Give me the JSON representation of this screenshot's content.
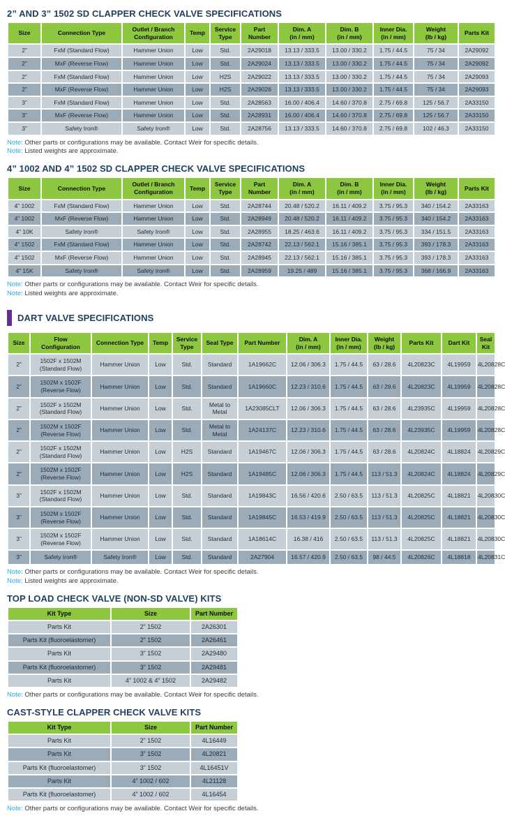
{
  "colors": {
    "header_green": "#8dc63f",
    "row_light": "#c6cfd6",
    "row_dark": "#9cabb8",
    "title_navy": "#223f60",
    "note_cyan": "#29abe2",
    "accent_purple": "#662d91"
  },
  "note_label": "Note:",
  "note_contact": "Other parts or configurations may be available. Contact Weir for specific details.",
  "note_weights": "Listed weights are approximate.",
  "titles": {
    "table1": "2” AND 3” 1502 SD CLAPPER CHECK VALVE SPECIFICATIONS",
    "table2": "4” 1002 AND 4” 1502 SD CLAPPER CHECK VALVE SPECIFICATIONS",
    "table3": "DART VALVE SPECIFICATIONS",
    "table4": "TOP LOAD CHECK VALVE (NON-SD VALVE) KITS",
    "table5": "CAST-STYLE CLAPPER CHECK VALVE KITS"
  },
  "table1": {
    "headers": [
      "Size",
      "Connection Type",
      "Outlet / Branch\nConfiguration",
      "Temp",
      "Service\nType",
      "Part\nNumber",
      "Dim. A\n(in / mm)",
      "Dim. B\n(in / mm)",
      "Inner Dia.\n(in / mm)",
      "Weight\n(lb / kg)",
      "Parts Kit"
    ],
    "rows": [
      [
        "2”",
        "FxM (Standard Flow)",
        "Hammer Union",
        "Low",
        "Std.",
        "2A29018",
        "13.13 / 333.5",
        "13.00 / 330.2",
        "1.75 / 44.5",
        "75 / 34",
        "2A29092"
      ],
      [
        "2”",
        "MxF (Reverse Flow)",
        "Hammer Union",
        "Low",
        "Std.",
        "2A29024",
        "13.13 / 333.5",
        "13.00 / 330.2",
        "1.75 / 44.5",
        "75 / 34",
        "2A29092"
      ],
      [
        "2”",
        "FxM (Standard Flow)",
        "Hammer Union",
        "Low",
        "H2S",
        "2A29022",
        "13.13 / 333.5",
        "13.00 / 330.2",
        "1.75 / 44.5",
        "75 / 34",
        "2A29093"
      ],
      [
        "2”",
        "MxF (Reverse Flow)",
        "Hammer Union",
        "Low",
        "H2S",
        "2A29026",
        "13.13 / 333.5",
        "13.00 / 330.2",
        "1.75 / 44.5",
        "75 / 34",
        "2A29093"
      ],
      [
        "3”",
        "FxM (Standard Flow)",
        "Hammer Union",
        "Low",
        "Std.",
        "2A28563",
        "16.00 / 406.4",
        "14.60 / 370.8",
        "2.75 / 69.8",
        "125 / 56.7",
        "2A33150"
      ],
      [
        "3”",
        "MxF (Reverse Flow)",
        "Hammer Union",
        "Low",
        "Std.",
        "2A28931",
        "16.00 / 406.4",
        "14.60 / 370.8",
        "2.75 / 69.8",
        "125 / 56.7",
        "2A33150"
      ],
      [
        "3”",
        "Safety Iron®",
        "Safety Iron®",
        "Low",
        "Std.",
        "2A28756",
        "13.13 / 333.5",
        "14.60 / 370.8",
        "2.75 / 69.8",
        "102 / 46.3",
        "2A33150"
      ]
    ]
  },
  "table2": {
    "headers": [
      "Size",
      "Connection Type",
      "Outlet / Branch\nConfiguration",
      "Temp",
      "Service\nType",
      "Part\nNumber",
      "Dim. A\n(in / mm)",
      "Dim. B\n(in / mm)",
      "Inner Dia.\n(in / mm)",
      "Weight\n(lb / kg)",
      "Parts Kit"
    ],
    "rows": [
      [
        "4” 1002",
        "FxM (Standard Flow)",
        "Hammer Union",
        "Low",
        "Std.",
        "2A28744",
        "20.48 / 520.2",
        "16.11 / 409.2",
        "3.75 / 95.3",
        "340 / 154.2",
        "2A33163"
      ],
      [
        "4” 1002",
        "MxF (Reverse Flow)",
        "Hammer Union",
        "Low",
        "Std.",
        "2A28949",
        "20.48 / 520.2",
        "16.11 / 409.2",
        "3.75 / 95.3",
        "340 / 154.2",
        "2A33163"
      ],
      [
        "4” 10K",
        "Safety Iron®",
        "Safety Iron®",
        "Low",
        "Std.",
        "2A28955",
        "18.25 / 463.6",
        "16.11 / 409.2",
        "3.75 / 95.3",
        "334 / 151.5",
        "2A33163"
      ],
      [
        "4” 1502",
        "FxM (Standard Flow)",
        "Hammer Union",
        "Low",
        "Std.",
        "2A28742",
        "22.13 / 562.1",
        "15.16 / 385.1",
        "3.75 / 95.3",
        "393 / 178.3",
        "2A33163"
      ],
      [
        "4” 1502",
        "MxF (Reverse Flow)",
        "Hammer Union",
        "Low",
        "Std.",
        "2A28945",
        "22.13 / 562.1",
        "15.16 / 385.1",
        "3.75 / 95.3",
        "393 / 178.3",
        "2A33163"
      ],
      [
        "4” 15K",
        "Safety Iron®",
        "Safety Iron®",
        "Low",
        "Std.",
        "2A28959",
        "19.25 / 489",
        "15.16 / 385.1",
        "3.75 / 95.3",
        "368 / 166.9",
        "2A33163"
      ]
    ]
  },
  "table3": {
    "headers": [
      "Size",
      "Flow\nConfiguration",
      "Connection Type",
      "Temp",
      "Service\nType",
      "Seal Type",
      "Part Number",
      "Dim. A\n(in / mm)",
      "Inner Dia.\n(in / mm)",
      "Weight\n(lb / kg)",
      "Parts Kit",
      "Dart Kit",
      "Seal Kit"
    ],
    "rows": [
      [
        "2”",
        "1502F x 1502M\n(Standard Flow)",
        "Hammer Union",
        "Low",
        "Std.",
        "Standard",
        "1A19662C",
        "12.06 / 306.3",
        "1.75 / 44.5",
        "63 / 28.6",
        "4L20823C",
        "4L19959",
        "4L20828C"
      ],
      [
        "2”",
        "1502M x 1502F\n(Reverse Flow)",
        "Hammer Union",
        "Low",
        "Std.",
        "Standard",
        "1A19660C",
        "12.23 / 310.6",
        "1.75 / 44.5",
        "63 / 28.6",
        "4L20823C",
        "4L19959",
        "4L20828C"
      ],
      [
        "2”",
        "1502F x 1502M\n(Standard Flow)",
        "Hammer Union",
        "Low",
        "Std.",
        "Metal to\nMetal",
        "1A23085CLT",
        "12.06 / 306.3",
        "1.75 / 44.5",
        "63 / 28.6",
        "4L23935C",
        "4L19959",
        "4L20828C"
      ],
      [
        "2”",
        "1502M x 1502F\n(Reverse Flow)",
        "Hammer Union",
        "Low",
        "Std.",
        "Metal to\nMetal",
        "1A24137C",
        "12.23 / 310.6",
        "1.75 / 44.5",
        "63 / 28.6",
        "4L23935C",
        "4L19959",
        "4L20828C"
      ],
      [
        "2”",
        "1502F x 1502M\n(Standard Flow)",
        "Hammer Union",
        "Low",
        "H2S",
        "Standard",
        "1A19467C",
        "12.06 / 306.3",
        "1.75 / 44.5",
        "63 / 28.6",
        "4L20824C",
        "4L18824",
        "4L20829C"
      ],
      [
        "2”",
        "1502M x 1502F\n(Reverse Flow)",
        "Hammer Union",
        "Low",
        "H2S",
        "Standard",
        "1A19485C",
        "12.06 / 306.3",
        "1.75 / 44.5",
        "113 / 51.3",
        "4L20824C",
        "4L18824",
        "4L20829C"
      ],
      [
        "3”",
        "1502F x 1502M\n(Standard Flow)",
        "Hammer Union",
        "Low",
        "Std.",
        "Standard",
        "1A19843C",
        "16.56 / 420.6",
        "2.50 / 63.5",
        "113 / 51.3",
        "4L20825C",
        "4L18821",
        "4L20830C"
      ],
      [
        "3”",
        "1502M x 1502F\n(Reverse Flow)",
        "Hammer Union",
        "Low",
        "Std.",
        "Standard",
        "1A19845C",
        "16.53 / 419.9",
        "2.50 / 63.5",
        "113 / 51.3",
        "4L20825C",
        "4L18821",
        "4L20830C"
      ],
      [
        "3”",
        "1502M x 1502F\n(Reverse Flow)",
        "Hammer Union",
        "Low",
        "Std.",
        "Standard",
        "1A18614C",
        "16.38 / 416",
        "2.50 / 63.5",
        "113 / 51.3",
        "4L20825C",
        "4L18821",
        "4L20830C"
      ],
      [
        "3”",
        "Safety Iron®",
        "Safety Iron®",
        "Low",
        "Std.",
        "Standard",
        "2A27904",
        "16.57 / 420.9",
        "2.50 / 63.5",
        "98 / 44.5",
        "4L20826C",
        "4L18818",
        "4L20831C"
      ]
    ]
  },
  "table4": {
    "headers": [
      "Kit Type",
      "Size",
      "Part Number"
    ],
    "rows": [
      [
        "Parts Kit",
        "2” 1502",
        "2A26301"
      ],
      [
        "Parts Kit (fluoroelastomer)",
        "2” 1502",
        "2A26461"
      ],
      [
        "Parts Kit",
        "3” 1502",
        "2A29480"
      ],
      [
        "Parts Kit (fluoroelastomer)",
        "3” 1502",
        "2A29481"
      ],
      [
        "Parts Kit",
        "4” 1002 & 4” 1502",
        "2A29482"
      ]
    ]
  },
  "table5": {
    "headers": [
      "Kit Type",
      "Size",
      "Part Number"
    ],
    "rows": [
      [
        "Parts Kit",
        "2” 1502",
        "4L16449"
      ],
      [
        "Parts Kit",
        "3” 1502",
        "4L20821"
      ],
      [
        "Parts Kit (fluoroelastomer)",
        "3” 1502",
        "4L16451V"
      ],
      [
        "Parts Kit",
        "4” 1002 / 602",
        "4L21128"
      ],
      [
        "Parts Kit (fluoroelastomer)",
        "4” 1002 / 602",
        "4L16454"
      ]
    ]
  }
}
